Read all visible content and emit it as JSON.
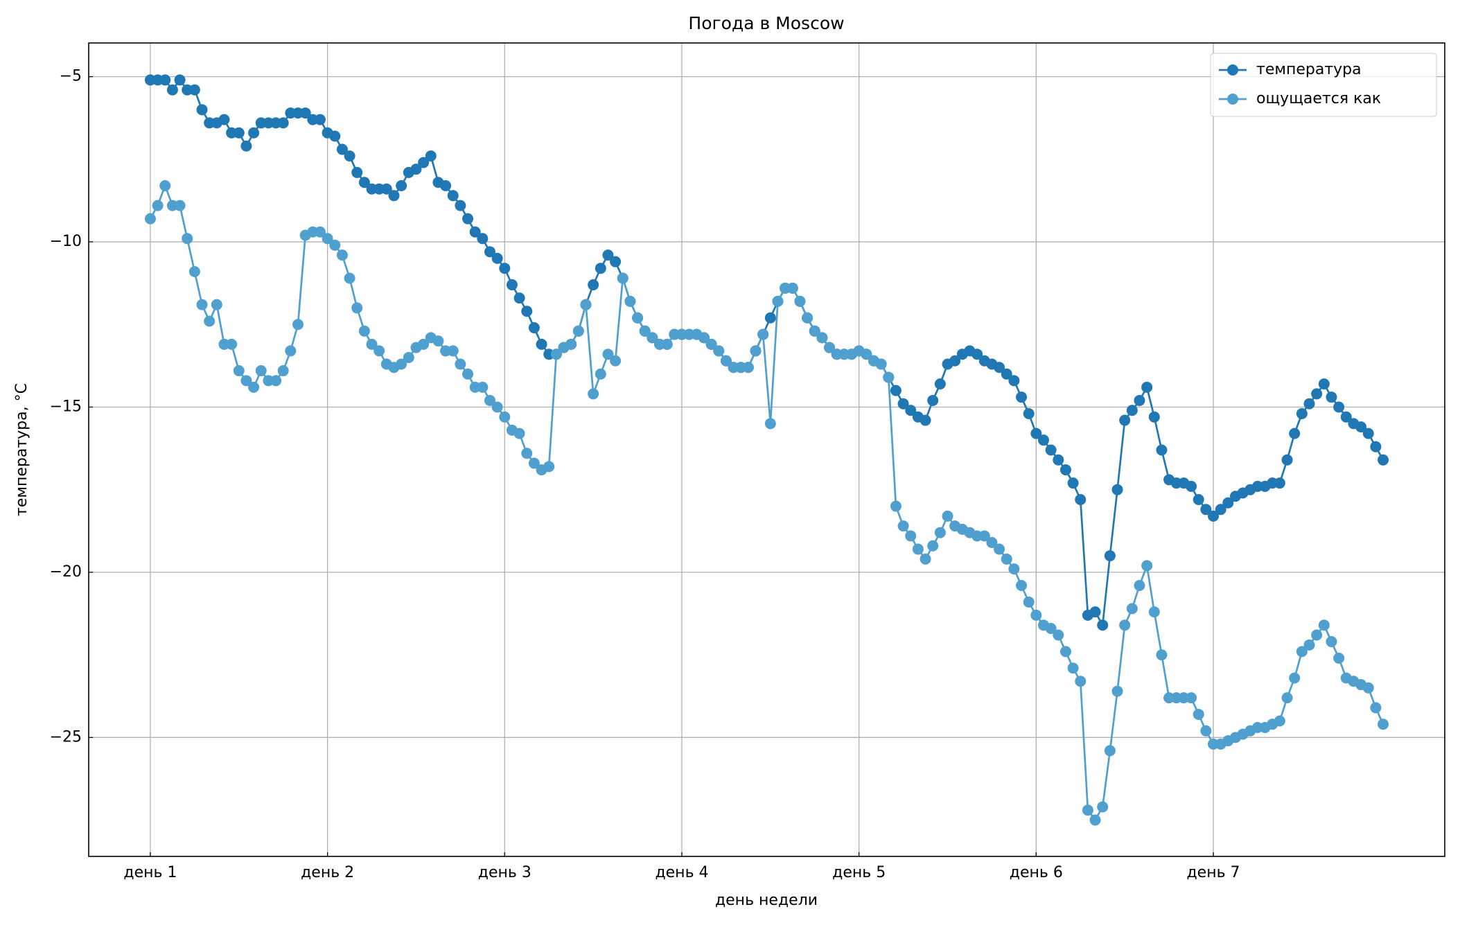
{
  "chart_data": {
    "type": "line",
    "title": "Погода в Moscow",
    "xlabel": "день недели",
    "ylabel": "температура, °C",
    "x": [
      0,
      1,
      2,
      3,
      4,
      5,
      6,
      7,
      8,
      9,
      10,
      11,
      12,
      13,
      14,
      15,
      16,
      17,
      18,
      19,
      20,
      21,
      22,
      23,
      24,
      25,
      26,
      27,
      28,
      29,
      30,
      31,
      32,
      33,
      34,
      35,
      36,
      37,
      38,
      39,
      40,
      41,
      42,
      43,
      44,
      45,
      46,
      47,
      48,
      49,
      50,
      51,
      52,
      53,
      54,
      55,
      56,
      57,
      58,
      59,
      60,
      61,
      62,
      63,
      64,
      65,
      66,
      67,
      68,
      69,
      70,
      71,
      72,
      73,
      74,
      75,
      76,
      77,
      78,
      79,
      80,
      81,
      82,
      83,
      84,
      85,
      86,
      87,
      88,
      89,
      90,
      91,
      92,
      93,
      94,
      95,
      96,
      97,
      98,
      99,
      100,
      101,
      102,
      103,
      104,
      105,
      106,
      107,
      108,
      109,
      110,
      111,
      112,
      113,
      114,
      115,
      116,
      117,
      118,
      119,
      120,
      121,
      122,
      123,
      124,
      125,
      126,
      127,
      128,
      129,
      130,
      131,
      132,
      133,
      134,
      135,
      136,
      137,
      138,
      139,
      140,
      141,
      142,
      143,
      144,
      145,
      146,
      147,
      148,
      149,
      150,
      151,
      152,
      153,
      154,
      155,
      156,
      157,
      158,
      159,
      160,
      161,
      162,
      163,
      164,
      165,
      166,
      167
    ],
    "series": [
      {
        "name": "температура",
        "color": "#1f77b4",
        "values": [
          -5.1,
          -5.1,
          -5.1,
          -5.4,
          -5.1,
          -5.4,
          -5.4,
          -6.0,
          -6.4,
          -6.4,
          -6.3,
          -6.7,
          -6.7,
          -7.1,
          -6.7,
          -6.4,
          -6.4,
          -6.4,
          -6.4,
          -6.1,
          -6.1,
          -6.1,
          -6.3,
          -6.3,
          -6.7,
          -6.8,
          -7.2,
          -7.4,
          -7.9,
          -8.2,
          -8.4,
          -8.4,
          -8.4,
          -8.6,
          -8.3,
          -7.9,
          -7.8,
          -7.6,
          -7.4,
          -8.2,
          -8.3,
          -8.6,
          -8.9,
          -9.3,
          -9.7,
          -9.9,
          -10.3,
          -10.5,
          -10.8,
          -11.3,
          -11.7,
          -12.1,
          -12.6,
          -13.1,
          -13.4,
          -13.4,
          -13.2,
          -13.1,
          -12.7,
          -11.9,
          -11.3,
          -10.8,
          -10.4,
          -10.6,
          -11.1,
          -11.8,
          -12.3,
          -12.7,
          -12.9,
          -13.1,
          -13.1,
          -12.8,
          -12.8,
          -12.8,
          -12.8,
          -12.9,
          -13.1,
          -13.3,
          -13.6,
          -13.8,
          -13.8,
          -13.8,
          -13.3,
          -12.8,
          -12.3,
          -11.8,
          -11.4,
          -11.4,
          -11.8,
          -12.3,
          -12.7,
          -12.9,
          -13.2,
          -13.4,
          -13.4,
          -13.4,
          -13.3,
          -13.4,
          -13.6,
          -13.7,
          -14.1,
          -14.5,
          -14.9,
          -15.1,
          -15.3,
          -15.4,
          -14.8,
          -14.3,
          -13.7,
          -13.6,
          -13.4,
          -13.3,
          -13.4,
          -13.6,
          -13.7,
          -13.8,
          -14.0,
          -14.2,
          -14.7,
          -15.2,
          -15.8,
          -16.0,
          -16.3,
          -16.6,
          -16.9,
          -17.3,
          -17.8,
          -21.3,
          -21.2,
          -21.6,
          -19.5,
          -17.5,
          -15.4,
          -15.1,
          -14.8,
          -14.4,
          -15.3,
          -16.3,
          -17.2,
          -17.3,
          -17.3,
          -17.4,
          -17.8,
          -18.1,
          -18.3,
          -18.1,
          -17.9,
          -17.7,
          -17.6,
          -17.5,
          -17.4,
          -17.4,
          -17.3,
          -17.3,
          -16.6,
          -15.8,
          -15.2,
          -14.9,
          -14.6,
          -14.3,
          -14.7,
          -15.0,
          -15.3,
          -15.5,
          -15.6,
          -15.8,
          -16.2,
          -16.6
        ]
      },
      {
        "name": "ощущается как",
        "color": "#4f9fcf",
        "values": [
          -9.3,
          -8.9,
          -8.3,
          -8.9,
          -8.9,
          -9.9,
          -10.9,
          -11.9,
          -12.4,
          -11.9,
          -13.1,
          -13.1,
          -13.9,
          -14.2,
          -14.4,
          -13.9,
          -14.2,
          -14.2,
          -13.9,
          -13.3,
          -12.5,
          -9.8,
          -9.7,
          -9.7,
          -9.9,
          -10.1,
          -10.4,
          -11.1,
          -12.0,
          -12.7,
          -13.1,
          -13.3,
          -13.7,
          -13.8,
          -13.7,
          -13.5,
          -13.2,
          -13.1,
          -12.9,
          -13.0,
          -13.3,
          -13.3,
          -13.7,
          -14.0,
          -14.4,
          -14.4,
          -14.8,
          -15.0,
          -15.3,
          -15.7,
          -15.8,
          -16.4,
          -16.7,
          -16.9,
          -16.8,
          -13.4,
          -13.2,
          -13.1,
          -12.7,
          -11.9,
          -14.6,
          -14.0,
          -13.4,
          -13.6,
          -11.1,
          -11.8,
          -12.3,
          -12.7,
          -12.9,
          -13.1,
          -13.1,
          -12.8,
          -12.8,
          -12.8,
          -12.8,
          -12.9,
          -13.1,
          -13.3,
          -13.6,
          -13.8,
          -13.8,
          -13.8,
          -13.3,
          -12.8,
          -15.5,
          -11.8,
          -11.4,
          -11.4,
          -11.8,
          -12.3,
          -12.7,
          -12.9,
          -13.2,
          -13.4,
          -13.4,
          -13.4,
          -13.3,
          -13.4,
          -13.6,
          -13.7,
          -14.1,
          -18.0,
          -18.6,
          -18.9,
          -19.3,
          -19.6,
          -19.2,
          -18.8,
          -18.3,
          -18.6,
          -18.7,
          -18.8,
          -18.9,
          -18.9,
          -19.1,
          -19.3,
          -19.6,
          -19.9,
          -20.4,
          -20.9,
          -21.3,
          -21.6,
          -21.7,
          -21.9,
          -22.4,
          -22.9,
          -23.3,
          -27.2,
          -27.5,
          -27.1,
          -25.4,
          -23.6,
          -21.6,
          -21.1,
          -20.4,
          -19.8,
          -21.2,
          -22.5,
          -23.8,
          -23.8,
          -23.8,
          -23.8,
          -24.3,
          -24.8,
          -25.2,
          -25.2,
          -25.1,
          -25.0,
          -24.9,
          -24.8,
          -24.7,
          -24.7,
          -24.6,
          -24.5,
          -23.8,
          -23.2,
          -22.4,
          -22.2,
          -21.9,
          -21.6,
          -22.1,
          -22.6,
          -23.2,
          -23.3,
          -23.4,
          -23.5,
          -24.1,
          -24.6
        ]
      }
    ],
    "xlim": [
      -8.35,
      175.35
    ],
    "xticks": [
      {
        "value": 0,
        "label": "день 1"
      },
      {
        "value": 24,
        "label": "день 2"
      },
      {
        "value": 48,
        "label": "день 3"
      },
      {
        "value": 72,
        "label": "день 4"
      },
      {
        "value": 96,
        "label": "день 5"
      },
      {
        "value": 120,
        "label": "день 6"
      },
      {
        "value": 144,
        "label": "день 7"
      }
    ],
    "ylim": [
      -28.6,
      -3.98
    ],
    "yticks": [
      {
        "value": -25,
        "label": "−25"
      },
      {
        "value": -20,
        "label": "−20"
      },
      {
        "value": -15,
        "label": "−15"
      },
      {
        "value": -10,
        "label": "−10"
      },
      {
        "value": -5,
        "label": "−5"
      }
    ],
    "grid": true,
    "legend": "upper right",
    "marker": "o"
  }
}
